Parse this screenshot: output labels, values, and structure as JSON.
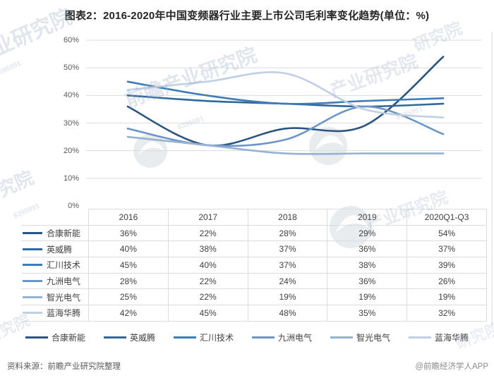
{
  "title": "图表2：2016-2020年中国变频器行业主要上市公司毛利率变化趋势(单位：%)",
  "footer": {
    "source": "资料来源：前瞻产业研究院整理",
    "credit": "@前瞻经济学人APP"
  },
  "watermark": {
    "text": "前瞻产业研究院",
    "partial_text": "产业研究院",
    "short_text": "研究院",
    "digits": "8395991"
  },
  "chart_data": {
    "type": "line",
    "title": "2016-2020年中国变频器行业主要上市公司毛利率变化趋势",
    "unit": "%",
    "categories": [
      "2016",
      "2017",
      "2018",
      "2019",
      "2020Q1-Q3"
    ],
    "series": [
      {
        "name": "合康新能",
        "values": [
          36,
          22,
          28,
          29,
          54
        ],
        "color": "#2A5482"
      },
      {
        "name": "英威腾",
        "values": [
          40,
          38,
          37,
          36,
          37
        ],
        "color": "#30689B"
      },
      {
        "name": "汇川技术",
        "values": [
          45,
          40,
          37,
          38,
          39
        ],
        "color": "#3E7CB5"
      },
      {
        "name": "九洲电气",
        "values": [
          28,
          22,
          24,
          36,
          26
        ],
        "color": "#6D95C8"
      },
      {
        "name": "智光电气",
        "values": [
          25,
          22,
          19,
          19,
          19
        ],
        "color": "#96B1D3"
      },
      {
        "name": "蓝海华腾",
        "values": [
          42,
          45,
          48,
          35,
          32
        ],
        "color": "#C0CFE3"
      }
    ],
    "ylim": [
      0,
      60
    ],
    "ytick_step": 10,
    "ytick_suffix": "%",
    "grid": "horizontal",
    "legend_position": "bottom",
    "line_style": "smoothed",
    "table_shown": true
  }
}
